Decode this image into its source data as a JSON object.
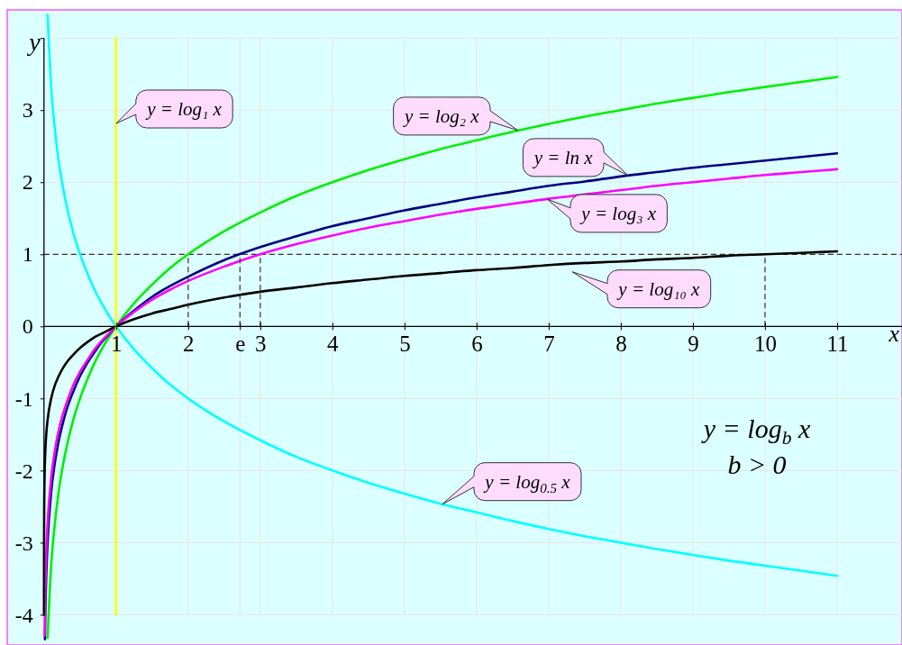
{
  "chart_data": {
    "type": "line",
    "xlabel": "x",
    "ylabel": "y",
    "annotations": [
      "y = log$_{b}$ x",
      "b > 0"
    ],
    "xlim": [
      -0.51,
      11.9
    ],
    "ylim": [
      -4.42,
      4.39
    ],
    "xticks": [
      1,
      2,
      {
        "value": 2.718,
        "label": "e"
      },
      3,
      4,
      5,
      6,
      7,
      8,
      9,
      10,
      11
    ],
    "yticks": [
      -4,
      -3,
      -2,
      -1,
      0,
      1,
      2,
      3,
      {
        "value": 4,
        "label": null
      }
    ],
    "grid": true,
    "ref_lines": [
      {
        "axis": "y",
        "value": 1,
        "color": "#333333",
        "line_style": "dashed"
      }
    ],
    "series": [
      {
        "name": "y = log₂ x",
        "color": "#00ee00",
        "x": [
          0.05,
          0.1,
          0.15,
          0.2,
          0.25,
          0.3,
          0.4,
          0.5,
          0.6,
          0.7,
          0.8,
          0.9,
          1,
          1.25,
          1.5,
          1.75,
          2,
          2.5,
          3,
          3.5,
          4,
          4.5,
          5,
          5.5,
          6,
          6.5,
          7,
          7.5,
          8,
          8.5,
          9,
          9.5,
          10,
          10.5,
          11
        ],
        "values": [
          -4.32,
          -3.32,
          -2.74,
          -2.32,
          -2,
          -1.74,
          -1.32,
          -1,
          -0.74,
          -0.51,
          -0.32,
          -0.15,
          0,
          0.32,
          0.58,
          0.81,
          1,
          1.32,
          1.58,
          1.81,
          2,
          2.17,
          2.32,
          2.46,
          2.58,
          2.7,
          2.81,
          2.91,
          3,
          3.09,
          3.17,
          3.25,
          3.32,
          3.39,
          3.46
        ]
      },
      {
        "name": "y = ln x",
        "color": "#000080",
        "x": [
          0.013,
          0.02,
          0.03,
          0.05,
          0.1,
          0.15,
          0.2,
          0.25,
          0.3,
          0.4,
          0.5,
          0.6,
          0.7,
          0.8,
          0.9,
          1,
          1.25,
          1.5,
          1.75,
          2,
          2.5,
          3,
          3.5,
          4,
          4.5,
          5,
          5.5,
          6,
          6.5,
          7,
          7.5,
          8,
          8.5,
          9,
          9.5,
          10,
          10.5,
          11
        ],
        "values": [
          -4.34,
          -3.91,
          -3.51,
          -3.0,
          -2.3,
          -1.9,
          -1.61,
          -1.39,
          -1.2,
          -0.92,
          -0.69,
          -0.51,
          -0.36,
          -0.22,
          -0.11,
          0,
          0.22,
          0.41,
          0.56,
          0.69,
          0.92,
          1.1,
          1.25,
          1.39,
          1.5,
          1.61,
          1.7,
          1.79,
          1.87,
          1.95,
          2.01,
          2.08,
          2.14,
          2.2,
          2.25,
          2.3,
          2.35,
          2.4
        ]
      },
      {
        "name": "y = log₃ x",
        "color": "#ff00ff",
        "x": [
          0.009,
          0.015,
          0.02,
          0.03,
          0.05,
          0.1,
          0.15,
          0.2,
          0.25,
          0.3,
          0.4,
          0.5,
          0.6,
          0.7,
          0.8,
          0.9,
          1,
          1.25,
          1.5,
          1.75,
          2,
          2.5,
          3,
          3.5,
          4,
          4.5,
          5,
          5.5,
          6,
          6.5,
          7,
          7.5,
          8,
          8.5,
          9,
          9.5,
          10,
          10.5,
          11
        ],
        "values": [
          -4.29,
          -3.82,
          -3.56,
          -3.19,
          -2.73,
          -2.1,
          -1.73,
          -1.46,
          -1.26,
          -1.1,
          -0.83,
          -0.63,
          -0.47,
          -0.32,
          -0.2,
          -0.1,
          0,
          0.2,
          0.37,
          0.51,
          0.63,
          0.83,
          1,
          1.14,
          1.26,
          1.37,
          1.46,
          1.55,
          1.63,
          1.7,
          1.77,
          1.83,
          1.89,
          1.95,
          2,
          2.05,
          2.1,
          2.14,
          2.18
        ]
      },
      {
        "name": "y = log₁₀ x",
        "color": "#000000",
        "x": [
          0.0001,
          0.001,
          0.003,
          0.01,
          0.02,
          0.03,
          0.05,
          0.1,
          0.15,
          0.2,
          0.25,
          0.3,
          0.4,
          0.5,
          0.6,
          0.7,
          0.8,
          0.9,
          1,
          1.25,
          1.5,
          1.75,
          2,
          2.5,
          3,
          3.5,
          4,
          4.5,
          5,
          5.5,
          6,
          6.5,
          7,
          7.5,
          8,
          8.5,
          9,
          9.5,
          10,
          10.5,
          11
        ],
        "values": [
          -4,
          -3,
          -2.52,
          -2,
          -1.7,
          -1.52,
          -1.3,
          -1,
          -0.82,
          -0.7,
          -0.6,
          -0.52,
          -0.4,
          -0.3,
          -0.22,
          -0.15,
          -0.1,
          -0.05,
          0,
          0.1,
          0.18,
          0.24,
          0.3,
          0.4,
          0.48,
          0.54,
          0.6,
          0.65,
          0.7,
          0.74,
          0.78,
          0.81,
          0.85,
          0.88,
          0.9,
          0.93,
          0.95,
          0.98,
          1,
          1.02,
          1.04
        ]
      },
      {
        "name": "y = log$_{0.5}$ x",
        "color": "#00ffff",
        "x": [
          0.05,
          0.1,
          0.15,
          0.2,
          0.25,
          0.3,
          0.4,
          0.5,
          0.6,
          0.7,
          0.8,
          0.9,
          1,
          1.25,
          1.5,
          1.75,
          2,
          2.5,
          3,
          3.5,
          4,
          4.5,
          5,
          5.5,
          6,
          6.5,
          7,
          7.5,
          8,
          8.5,
          9,
          9.5,
          10,
          10.5,
          11
        ],
        "values": [
          4.32,
          3.32,
          2.74,
          2.32,
          2,
          1.74,
          1.32,
          1,
          0.74,
          0.51,
          0.32,
          0.15,
          0,
          -0.32,
          -0.58,
          -0.81,
          -1,
          -1.32,
          -1.58,
          -1.81,
          -2,
          -2.17,
          -2.32,
          -2.46,
          -2.58,
          -2.7,
          -2.81,
          -2.91,
          -3,
          -3.09,
          -3.17,
          -3.25,
          -3.32,
          -3.39,
          -3.46
        ]
      },
      {
        "name": "y = log₁ x",
        "color": "#ffff00",
        "x": [
          1,
          1
        ],
        "values": [
          -4,
          4
        ]
      },
      {
        "color": "#333333",
        "line_style": "dashed",
        "x": [
          2,
          2
        ],
        "values": [
          0,
          1
        ]
      },
      {
        "color": "#333333",
        "line_style": "dashed",
        "x": [
          2.718,
          2.718
        ],
        "values": [
          0,
          1
        ]
      },
      {
        "color": "#333333",
        "line_style": "dashed",
        "x": [
          3,
          3
        ],
        "values": [
          0,
          1
        ]
      },
      {
        "color": "#333333",
        "line_style": "dashed",
        "x": [
          10,
          10
        ],
        "values": [
          0,
          1
        ]
      }
    ]
  }
}
